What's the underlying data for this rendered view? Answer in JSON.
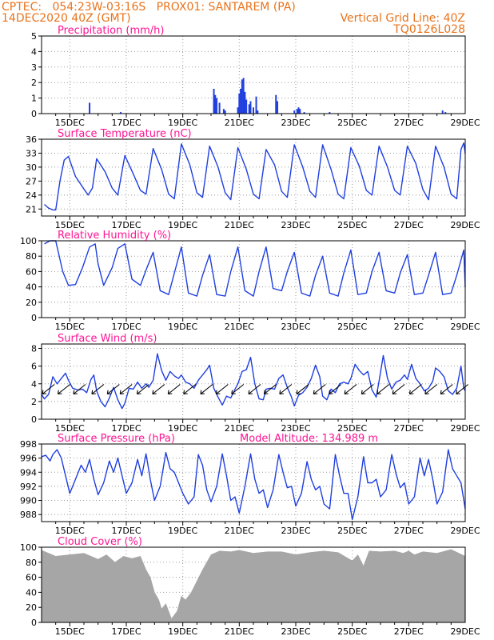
{
  "header": {
    "line1_left": "CPTEC:   054:23W-03:16S   PROX01: SANTAREM (PA)",
    "line2_left": "14DEC2020 40Z (GMT)",
    "line2_right": "Vertical Grid Line: 40Z",
    "line3_right": "TQ0126L028",
    "color": "#e8731c"
  },
  "colors": {
    "title": "#ff1493",
    "series": "#1f3fe0",
    "cloud": "#a6a6a6",
    "arrow": "#000000",
    "grid": "#9a9a9a"
  },
  "x_ticks": [
    "15DEC",
    "17DEC",
    "19DEC",
    "21DEC",
    "23DEC",
    "25DEC",
    "27DEC",
    "29DEC"
  ],
  "chart_data": [
    {
      "id": "precip",
      "type": "bar",
      "title": "Precipitation (mm/h)",
      "ylim": [
        0,
        5
      ],
      "yticks": [
        0,
        1,
        2,
        3,
        4,
        5
      ],
      "xlim": [
        14.0,
        29.0
      ],
      "series": [
        {
          "x": [
            15.7,
            16.8,
            20.1,
            20.15,
            20.2,
            20.3,
            20.45,
            20.5,
            20.95,
            21.0,
            21.05,
            21.1,
            21.15,
            21.2,
            21.25,
            21.35,
            21.4,
            21.5,
            21.6,
            21.65,
            22.3,
            22.35,
            22.95,
            23.05,
            23.1,
            23.15,
            23.3,
            24.2,
            28.2,
            28.3
          ],
          "y": [
            0.7,
            0.1,
            1.6,
            1.2,
            1.0,
            0.7,
            0.3,
            0.2,
            0.4,
            1.3,
            1.6,
            2.2,
            2.3,
            1.4,
            0.9,
            0.6,
            0.8,
            0.4,
            1.1,
            0.2,
            1.2,
            0.8,
            0.2,
            0.3,
            0.4,
            0.3,
            0.1,
            0.1,
            0.2,
            0.1
          ]
        }
      ]
    },
    {
      "id": "temp",
      "type": "line",
      "title": "Surface Temperature (nC)",
      "ylim": [
        19.5,
        36
      ],
      "yticks": [
        21,
        24,
        27,
        30,
        33,
        36
      ],
      "yticklabels": [
        "21",
        "24",
        "27",
        "30",
        "33",
        "36"
      ],
      "xlim": [
        14.0,
        29.0
      ],
      "series": [
        {
          "x": [
            14.1,
            14.25,
            14.4,
            14.5,
            14.65,
            14.8,
            14.95,
            15.2,
            15.5,
            15.65,
            15.8,
            15.95,
            16.25,
            16.5,
            16.7,
            16.95,
            17.25,
            17.5,
            17.7,
            17.95,
            18.25,
            18.5,
            18.7,
            18.95,
            19.25,
            19.5,
            19.7,
            19.95,
            20.25,
            20.5,
            20.7,
            20.95,
            21.25,
            21.5,
            21.7,
            21.95,
            22.25,
            22.5,
            22.7,
            22.95,
            23.25,
            23.5,
            23.7,
            23.95,
            24.25,
            24.5,
            24.7,
            24.95,
            25.25,
            25.5,
            25.7,
            25.95,
            26.25,
            26.5,
            26.7,
            26.95,
            27.25,
            27.5,
            27.7,
            27.95,
            28.25,
            28.5,
            28.7,
            28.85,
            28.95,
            29.0
          ],
          "y": [
            22.0,
            21.2,
            20.8,
            20.8,
            27.0,
            31.5,
            32.3,
            28.0,
            25.3,
            24.0,
            25.5,
            31.8,
            29.0,
            25.5,
            24.0,
            32.5,
            28.5,
            25.0,
            24.2,
            34.0,
            29.5,
            24.2,
            23.2,
            35.0,
            30.5,
            24.5,
            23.5,
            34.5,
            30.0,
            24.5,
            23.0,
            34.2,
            29.5,
            24.2,
            23.2,
            33.8,
            30.5,
            24.8,
            23.5,
            34.8,
            30.0,
            24.8,
            23.5,
            34.8,
            29.5,
            24.2,
            23.2,
            34.2,
            30.2,
            25.0,
            24.0,
            34.5,
            30.0,
            25.0,
            24.0,
            34.5,
            30.8,
            25.2,
            23.0,
            34.5,
            30.0,
            24.2,
            23.2,
            33.8,
            35.2,
            33.0
          ]
        }
      ]
    },
    {
      "id": "rh",
      "type": "line",
      "title": "Relative Humidity (%)",
      "ylim": [
        0,
        100
      ],
      "yticks": [
        0,
        20,
        40,
        60,
        80,
        100
      ],
      "xlim": [
        14.0,
        29.0
      ],
      "series": [
        {
          "x": [
            14.1,
            14.3,
            14.5,
            14.75,
            14.95,
            15.2,
            15.45,
            15.7,
            15.9,
            16.0,
            16.2,
            16.5,
            16.7,
            16.95,
            17.2,
            17.5,
            17.7,
            17.95,
            18.2,
            18.5,
            18.7,
            18.95,
            19.2,
            19.5,
            19.7,
            19.95,
            20.2,
            20.5,
            20.7,
            20.95,
            21.2,
            21.5,
            21.7,
            21.95,
            22.2,
            22.5,
            22.7,
            22.95,
            23.2,
            23.5,
            23.7,
            23.95,
            24.2,
            24.5,
            24.7,
            24.95,
            25.2,
            25.5,
            25.7,
            25.95,
            26.2,
            26.5,
            26.7,
            26.95,
            27.2,
            27.5,
            27.7,
            27.95,
            28.2,
            28.5,
            28.7,
            28.95,
            29.0
          ],
          "y": [
            96,
            100,
            100,
            60,
            42,
            43,
            65,
            92,
            96,
            70,
            42,
            65,
            90,
            96,
            50,
            42,
            62,
            85,
            35,
            30,
            58,
            92,
            32,
            28,
            55,
            82,
            30,
            28,
            60,
            92,
            35,
            28,
            60,
            92,
            38,
            35,
            60,
            85,
            32,
            28,
            55,
            80,
            32,
            28,
            58,
            88,
            30,
            32,
            60,
            85,
            35,
            32,
            58,
            82,
            30,
            32,
            55,
            85,
            30,
            32,
            55,
            88,
            40
          ]
        }
      ]
    },
    {
      "id": "wind",
      "type": "line",
      "title": "Surface Wind (m/s)",
      "ylim": [
        0,
        8.5
      ],
      "yticks": [
        0,
        2,
        4,
        6,
        8
      ],
      "xlim": [
        14.0,
        29.0
      ],
      "arrows_y": 3.3,
      "arrow_x": [
        14.2,
        14.75,
        15.3,
        15.95,
        16.5,
        16.95,
        17.55,
        18.1,
        18.65,
        19.2,
        19.8,
        20.35,
        20.9,
        21.5,
        22.05,
        22.6,
        23.2,
        23.8,
        24.35,
        24.9,
        25.5,
        26.05,
        26.6,
        27.2,
        27.75,
        28.3,
        28.85
      ],
      "series": [
        {
          "x": [
            14.0,
            14.1,
            14.25,
            14.4,
            14.55,
            14.7,
            14.85,
            14.95,
            15.1,
            15.3,
            15.45,
            15.6,
            15.75,
            15.85,
            15.95,
            16.1,
            16.25,
            16.4,
            16.55,
            16.7,
            16.85,
            16.95,
            17.1,
            17.25,
            17.4,
            17.55,
            17.7,
            17.8,
            17.95,
            18.1,
            18.25,
            18.4,
            18.55,
            18.7,
            18.85,
            18.95,
            19.1,
            19.25,
            19.4,
            19.55,
            19.7,
            19.85,
            19.95,
            20.1,
            20.25,
            20.4,
            20.55,
            20.7,
            20.85,
            20.95,
            21.1,
            21.25,
            21.4,
            21.55,
            21.7,
            21.85,
            21.95,
            22.1,
            22.25,
            22.4,
            22.55,
            22.7,
            22.85,
            22.95,
            23.1,
            23.25,
            23.4,
            23.55,
            23.7,
            23.85,
            23.95,
            24.1,
            24.25,
            24.4,
            24.55,
            24.7,
            24.85,
            24.95,
            25.1,
            25.25,
            25.4,
            25.55,
            25.7,
            25.85,
            25.95,
            26.1,
            26.25,
            26.4,
            26.55,
            26.7,
            26.85,
            26.95,
            27.1,
            27.25,
            27.4,
            27.55,
            27.7,
            27.85,
            27.95,
            28.1,
            28.25,
            28.4,
            28.55,
            28.7,
            28.85,
            28.95,
            29.0
          ],
          "y": [
            2.8,
            2.3,
            2.8,
            4.8,
            4.0,
            4.6,
            5.2,
            4.4,
            3.5,
            3.3,
            3.4,
            3.0,
            4.5,
            5.0,
            3.2,
            2.0,
            1.4,
            2.4,
            3.6,
            2.2,
            1.2,
            1.8,
            3.5,
            3.4,
            4.2,
            3.5,
            4.0,
            3.6,
            4.4,
            7.4,
            5.5,
            4.4,
            5.4,
            4.9,
            4.6,
            5.0,
            4.2,
            4.0,
            3.5,
            4.4,
            5.0,
            5.6,
            6.1,
            3.5,
            2.5,
            1.6,
            2.6,
            2.4,
            3.4,
            4.0,
            5.4,
            5.6,
            7.0,
            4.0,
            2.3,
            2.2,
            3.4,
            3.5,
            3.4,
            4.6,
            5.0,
            3.6,
            2.5,
            1.5,
            2.7,
            3.0,
            3.6,
            4.6,
            6.1,
            4.8,
            2.6,
            2.2,
            3.4,
            3.0,
            4.0,
            4.2,
            4.0,
            4.6,
            6.2,
            5.5,
            5.0,
            5.4,
            3.3,
            2.5,
            4.3,
            7.2,
            4.6,
            3.4,
            4.2,
            4.4,
            5.0,
            4.5,
            6.2,
            4.6,
            4.0,
            3.2,
            3.5,
            4.3,
            5.8,
            5.4,
            4.8,
            3.2,
            2.8,
            3.5,
            6.0,
            3.5,
            3.2
          ]
        }
      ]
    },
    {
      "id": "pres",
      "type": "line",
      "title": "Surface Pressure (hPa)",
      "subtitle": "Model Altitude: 134.989  m",
      "ylim": [
        987,
        998
      ],
      "yticks": [
        988,
        990,
        992,
        994,
        996,
        998
      ],
      "xlim": [
        14.0,
        29.0
      ],
      "series": [
        {
          "x": [
            14.0,
            14.15,
            14.3,
            14.4,
            14.55,
            14.7,
            14.85,
            15.0,
            15.2,
            15.4,
            15.55,
            15.7,
            15.85,
            16.0,
            16.2,
            16.4,
            16.55,
            16.7,
            16.85,
            17.0,
            17.2,
            17.4,
            17.55,
            17.7,
            17.85,
            18.0,
            18.2,
            18.4,
            18.55,
            18.7,
            18.85,
            19.0,
            19.2,
            19.4,
            19.55,
            19.7,
            19.85,
            20.0,
            20.2,
            20.4,
            20.55,
            20.7,
            20.85,
            21.0,
            21.2,
            21.4,
            21.55,
            21.7,
            21.85,
            22.0,
            22.2,
            22.4,
            22.55,
            22.7,
            22.85,
            23.0,
            23.2,
            23.4,
            23.55,
            23.7,
            23.85,
            24.0,
            24.2,
            24.4,
            24.55,
            24.7,
            24.85,
            25.0,
            25.2,
            25.4,
            25.55,
            25.7,
            25.85,
            26.0,
            26.2,
            26.4,
            26.55,
            26.7,
            26.85,
            27.0,
            27.2,
            27.4,
            27.55,
            27.7,
            27.85,
            28.0,
            28.2,
            28.4,
            28.55,
            28.7,
            28.85,
            29.0
          ],
          "y": [
            996.2,
            996.4,
            995.6,
            996.5,
            997.2,
            996.0,
            993.5,
            991.0,
            993.0,
            995.0,
            994.0,
            995.8,
            993.0,
            990.8,
            992.5,
            995.6,
            994.0,
            996.0,
            993.5,
            991.0,
            992.5,
            995.8,
            993.5,
            996.6,
            993.0,
            990.0,
            992.0,
            996.8,
            994.5,
            994.0,
            992.5,
            991.0,
            989.5,
            990.5,
            996.5,
            995.0,
            991.5,
            989.8,
            992.0,
            996.6,
            993.5,
            990.0,
            990.5,
            988.2,
            992.0,
            996.6,
            993.0,
            991.0,
            991.5,
            989.0,
            991.5,
            996.5,
            994.0,
            991.8,
            992.0,
            989.2,
            991.0,
            995.5,
            993.0,
            991.5,
            992.0,
            989.5,
            988.8,
            996.5,
            993.5,
            991.0,
            991.0,
            987.3,
            990.5,
            996.2,
            992.5,
            992.5,
            993.0,
            990.5,
            991.5,
            996.5,
            993.8,
            991.8,
            992.5,
            989.5,
            990.5,
            996.0,
            993.5,
            995.8,
            993.0,
            989.5,
            991.2,
            997.2,
            994.5,
            993.5,
            992.5,
            988.8
          ]
        }
      ]
    },
    {
      "id": "cloud",
      "type": "area",
      "title": "Cloud Cover (%)",
      "ylim": [
        0,
        100
      ],
      "yticks": [
        0,
        20,
        40,
        60,
        80,
        100
      ],
      "xlim": [
        14.0,
        29.0
      ],
      "series": [
        {
          "x": [
            14.0,
            14.5,
            15.0,
            15.5,
            16.0,
            16.3,
            16.6,
            16.9,
            17.2,
            17.5,
            17.7,
            17.85,
            18.0,
            18.15,
            18.25,
            18.4,
            18.6,
            18.8,
            18.95,
            19.1,
            19.3,
            19.5,
            19.7,
            20.0,
            20.3,
            20.7,
            21.0,
            21.5,
            22.0,
            22.5,
            23.0,
            23.5,
            24.0,
            24.5,
            25.0,
            25.2,
            25.4,
            25.6,
            26.0,
            26.5,
            26.8,
            27.0,
            27.2,
            27.5,
            28.0,
            28.5,
            29.0
          ],
          "y": [
            96,
            88,
            90,
            92,
            84,
            90,
            80,
            88,
            85,
            88,
            70,
            60,
            40,
            30,
            18,
            25,
            5,
            15,
            35,
            30,
            40,
            55,
            70,
            90,
            95,
            94,
            96,
            92,
            94,
            94,
            90,
            93,
            95,
            93,
            82,
            90,
            75,
            95,
            94,
            95,
            92,
            95,
            90,
            94,
            92,
            97,
            88
          ]
        }
      ]
    }
  ]
}
